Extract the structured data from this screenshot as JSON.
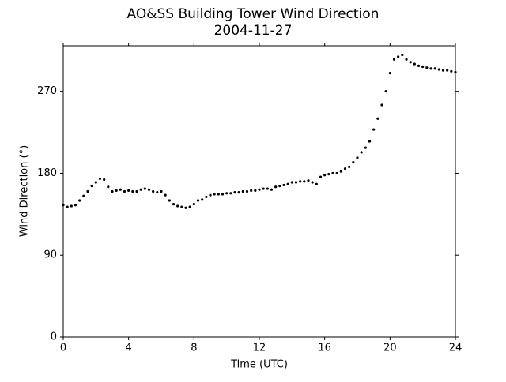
{
  "chart_data": {
    "type": "scatter",
    "title": "AO&SS Building Tower Wind Direction",
    "subtitle": "2004-11-27",
    "x_label": "Time (UTC)",
    "y_label": "Wind Direction (°)",
    "color": "#000000",
    "xlim": [
      0,
      24
    ],
    "xticks": [
      0,
      4,
      8,
      12,
      16,
      20,
      24
    ],
    "ylim": [
      0,
      320
    ],
    "yticks": [
      0,
      90,
      180,
      270
    ],
    "x": [
      0,
      0.25,
      0.5,
      0.75,
      1,
      1.25,
      1.5,
      1.75,
      2,
      2.25,
      2.5,
      2.75,
      3,
      3.25,
      3.5,
      3.75,
      4,
      4.25,
      4.5,
      4.75,
      5,
      5.25,
      5.5,
      5.75,
      6,
      6.25,
      6.5,
      6.75,
      7,
      7.25,
      7.5,
      7.75,
      8,
      8.25,
      8.5,
      8.75,
      9,
      9.25,
      9.5,
      9.75,
      10,
      10.25,
      10.5,
      10.75,
      11,
      11.25,
      11.5,
      11.75,
      12,
      12.25,
      12.5,
      12.75,
      13,
      13.25,
      13.5,
      13.75,
      14,
      14.25,
      14.5,
      14.75,
      15,
      15.25,
      15.5,
      15.75,
      16,
      16.25,
      16.5,
      16.75,
      17,
      17.25,
      17.5,
      17.75,
      18,
      18.25,
      18.5,
      18.75,
      19,
      19.25,
      19.5,
      19.75,
      20,
      20.25,
      20.5,
      20.75,
      21,
      21.25,
      21.5,
      21.75,
      22,
      22.25,
      22.5,
      22.75,
      23,
      23.25,
      23.5,
      23.75,
      24
    ],
    "values": [
      145,
      143,
      144,
      145,
      150,
      155,
      160,
      166,
      170,
      174,
      173,
      165,
      160,
      161,
      162,
      160,
      161,
      160,
      160,
      162,
      163,
      162,
      160,
      159,
      160,
      156,
      150,
      146,
      144,
      143,
      142,
      143,
      146,
      150,
      151,
      154,
      156,
      157,
      157,
      157,
      158,
      158,
      159,
      159,
      160,
      160,
      161,
      161,
      162,
      163,
      163,
      162,
      165,
      166,
      167,
      168,
      170,
      170,
      171,
      171,
      172,
      170,
      168,
      176,
      178,
      179,
      180,
      180,
      182,
      185,
      187,
      192,
      197,
      203,
      208,
      215,
      228,
      240,
      255,
      270,
      290,
      305,
      308,
      310,
      305,
      302,
      300,
      298,
      297,
      296,
      295,
      295,
      294,
      293,
      293,
      292,
      291
    ]
  }
}
